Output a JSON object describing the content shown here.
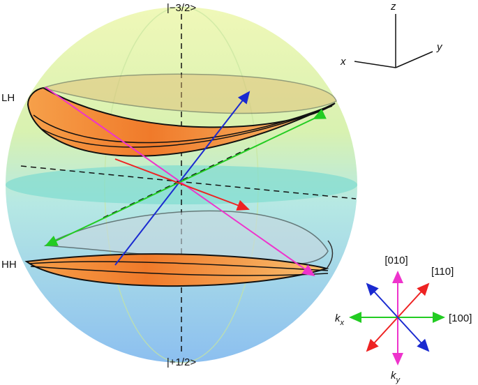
{
  "sphere": {
    "top_state": "|−3/2>",
    "bottom_state": "|+1/2>",
    "upper_band": "LH",
    "lower_band": "HH"
  },
  "axes": {
    "z": "z",
    "x": "x",
    "y": "y"
  },
  "directions": {
    "up": "[010]",
    "diagonal": "[110]",
    "right": "[100]",
    "kx": {
      "base": "k",
      "sub": "x"
    },
    "ky": {
      "base": "k",
      "sub": "y"
    }
  }
}
